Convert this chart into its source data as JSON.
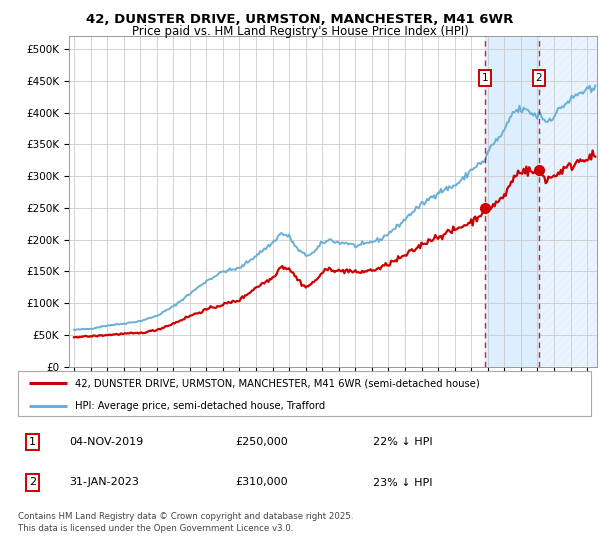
{
  "title_line1": "42, DUNSTER DRIVE, URMSTON, MANCHESTER, M41 6WR",
  "title_line2": "Price paid vs. HM Land Registry's House Price Index (HPI)",
  "legend_label1": "42, DUNSTER DRIVE, URMSTON, MANCHESTER, M41 6WR (semi-detached house)",
  "legend_label2": "HPI: Average price, semi-detached house, Trafford",
  "annotation1_date": "04-NOV-2019",
  "annotation1_price": "£250,000",
  "annotation1_hpi": "22% ↓ HPI",
  "annotation2_date": "31-JAN-2023",
  "annotation2_price": "£310,000",
  "annotation2_hpi": "23% ↓ HPI",
  "footer": "Contains HM Land Registry data © Crown copyright and database right 2025.\nThis data is licensed under the Open Government Licence v3.0.",
  "hpi_color": "#6baed6",
  "property_color": "#cc0000",
  "dot_color": "#cc0000",
  "annotation_box_color": "#cc0000",
  "shaded_region_color": "#ddeeff",
  "background_color": "#ffffff",
  "grid_color": "#cccccc",
  "ylim": [
    0,
    520000
  ],
  "yticks": [
    0,
    50000,
    100000,
    150000,
    200000,
    250000,
    300000,
    350000,
    400000,
    450000,
    500000
  ],
  "year_start": 1995,
  "year_end": 2026,
  "marker1_year": 2019.84,
  "marker1_value": 250000,
  "marker2_year": 2023.08,
  "marker2_value": 310000,
  "vline1_year": 2019.84,
  "vline2_year": 2023.08,
  "hpi_waypoints": {
    "1995.0": 58000,
    "1996.0": 60000,
    "1997.0": 65000,
    "1998.0": 68000,
    "1999.0": 72000,
    "2000.0": 80000,
    "2001.0": 95000,
    "2002.0": 115000,
    "2003.0": 135000,
    "2004.0": 150000,
    "2005.0": 155000,
    "2006.0": 175000,
    "2007.0": 195000,
    "2007.5": 210000,
    "2008.0": 205000,
    "2008.5": 185000,
    "2009.0": 175000,
    "2009.5": 180000,
    "2010.0": 195000,
    "2010.5": 200000,
    "2011.0": 195000,
    "2011.5": 195000,
    "2012.0": 190000,
    "2012.5": 192000,
    "2013.0": 197000,
    "2013.5": 200000,
    "2014.0": 210000,
    "2014.5": 220000,
    "2015.0": 232000,
    "2015.5": 245000,
    "2016.0": 255000,
    "2016.5": 265000,
    "2017.0": 275000,
    "2017.5": 280000,
    "2018.0": 285000,
    "2018.5": 295000,
    "2019.0": 310000,
    "2019.5": 320000,
    "2019.84": 322000,
    "2020.0": 340000,
    "2020.5": 355000,
    "2021.0": 370000,
    "2021.5": 400000,
    "2022.0": 405000,
    "2022.5": 402000,
    "2023.0": 393000,
    "2023.08": 402000,
    "2023.5": 385000,
    "2024.0": 395000,
    "2024.5": 410000,
    "2025.0": 420000,
    "2025.5": 430000,
    "2026.0": 435000
  },
  "prop_waypoints": {
    "1995.0": 47000,
    "1996.0": 48000,
    "1997.0": 50000,
    "1998.0": 52000,
    "1999.0": 53000,
    "2000.0": 58000,
    "2001.0": 68000,
    "2002.0": 80000,
    "2003.0": 90000,
    "2004.0": 98000,
    "2005.0": 105000,
    "2006.0": 125000,
    "2007.0": 140000,
    "2007.5": 158000,
    "2008.0": 155000,
    "2008.5": 138000,
    "2009.0": 125000,
    "2009.5": 133000,
    "2010.0": 148000,
    "2010.5": 155000,
    "2011.0": 150000,
    "2011.5": 152000,
    "2012.0": 148000,
    "2012.5": 150000,
    "2013.0": 152000,
    "2013.5": 155000,
    "2014.0": 162000,
    "2014.5": 168000,
    "2015.0": 175000,
    "2015.5": 183000,
    "2016.0": 192000,
    "2016.5": 200000,
    "2017.0": 205000,
    "2017.5": 210000,
    "2018.0": 215000,
    "2018.5": 222000,
    "2019.0": 228000,
    "2019.5": 238000,
    "2019.84": 250000,
    "2020.0": 248000,
    "2020.5": 258000,
    "2021.0": 268000,
    "2021.5": 295000,
    "2022.0": 310000,
    "2022.5": 308000,
    "2023.0": 305000,
    "2023.08": 310000,
    "2023.5": 295000,
    "2024.0": 300000,
    "2024.5": 310000,
    "2025.0": 315000,
    "2025.5": 325000,
    "2026.0": 330000
  }
}
